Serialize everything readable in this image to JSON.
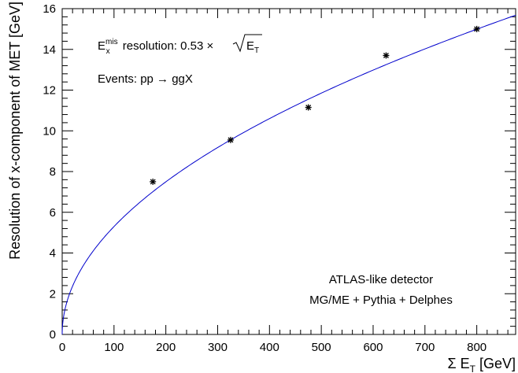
{
  "chart_data": {
    "type": "scatter",
    "title": "",
    "xlabel_prefix": "Σ E",
    "xlabel_sub": "T",
    "xlabel_suffix": " [GeV]",
    "ylabel": "Resolution of x-component  of MET [GeV]",
    "xlim": [
      0,
      875
    ],
    "ylim": [
      0,
      16
    ],
    "xticks": [
      0,
      100,
      200,
      300,
      400,
      500,
      600,
      700,
      800
    ],
    "yticks": [
      0,
      2,
      4,
      6,
      8,
      10,
      12,
      14,
      16
    ],
    "grid": false,
    "series": [
      {
        "points": [
          {
            "x": 175,
            "y": 7.5
          },
          {
            "x": 325,
            "y": 9.55
          },
          {
            "x": 475,
            "y": 11.15
          },
          {
            "x": 625,
            "y": 13.7
          },
          {
            "x": 800,
            "y": 15.0
          }
        ],
        "marker": "asterisk",
        "color": "#000000"
      }
    ],
    "fit": {
      "coefficient": 0.53,
      "function": "sqrt",
      "color": "#0000cc"
    },
    "annotations": {
      "resolution_prefix": "E",
      "resolution_sup": "mis",
      "resolution_sub": "x",
      "resolution_text": " resolution: 0.53 ×",
      "resolution_sqrt_arg": "E",
      "resolution_sqrt_sub": "T",
      "events_label": "Events: pp → ggX",
      "detector_label": "ATLAS-like detector",
      "generator_label": "MG/ME + Pythia + Delphes"
    }
  }
}
